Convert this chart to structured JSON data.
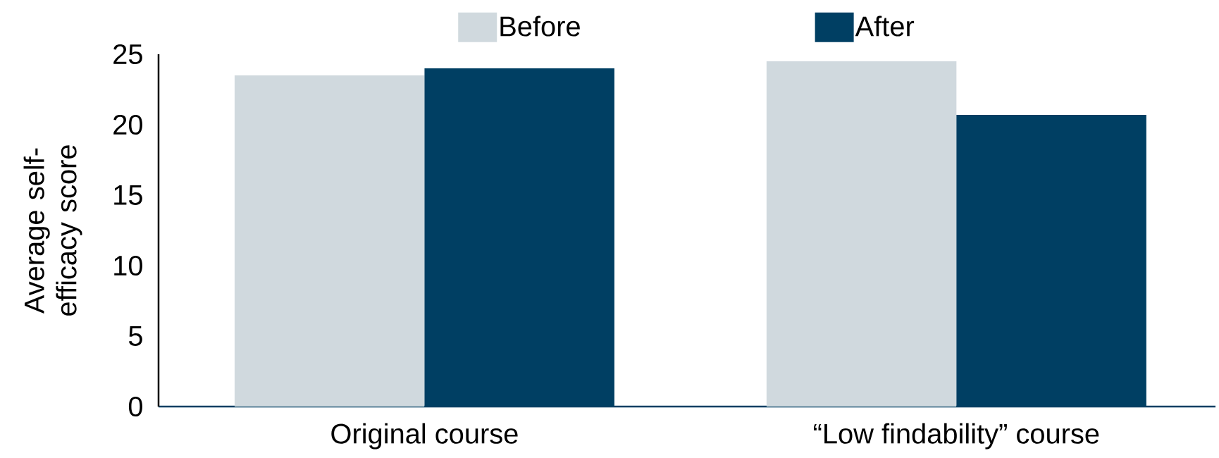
{
  "chart_data": {
    "type": "bar",
    "ylabel": "Average self-efficacy score",
    "categories": [
      "Original course",
      "“Low findability” course"
    ],
    "series": [
      {
        "name": "Before",
        "color": "#d0d9de",
        "values": [
          23.5,
          24.5
        ]
      },
      {
        "name": "After",
        "color": "#003f63",
        "values": [
          24.0,
          20.7
        ]
      }
    ],
    "ylim": [
      0,
      25
    ],
    "yticks": [
      0,
      5,
      10,
      15,
      20,
      25
    ],
    "grid": false,
    "legend": "top"
  }
}
